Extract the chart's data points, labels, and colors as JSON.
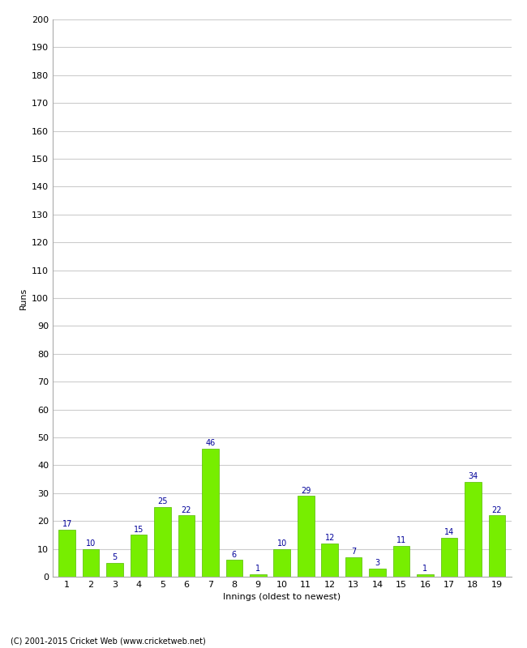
{
  "xlabel": "Innings (oldest to newest)",
  "ylabel": "Runs",
  "categories": [
    "1",
    "2",
    "3",
    "4",
    "5",
    "6",
    "7",
    "8",
    "9",
    "10",
    "11",
    "12",
    "13",
    "14",
    "15",
    "16",
    "17",
    "18",
    "19"
  ],
  "values": [
    17,
    10,
    5,
    15,
    25,
    22,
    46,
    6,
    1,
    10,
    29,
    12,
    7,
    3,
    11,
    1,
    14,
    34,
    22
  ],
  "bar_color": "#77ee00",
  "bar_edge_color": "#55bb00",
  "value_label_color": "#000099",
  "ylim": [
    0,
    200
  ],
  "ytick_step": 10,
  "background_color": "#ffffff",
  "grid_color": "#cccccc",
  "footer_text": "(C) 2001-2015 Cricket Web (www.cricketweb.net)",
  "value_fontsize": 7,
  "axis_label_fontsize": 8,
  "tick_label_fontsize": 8,
  "footer_fontsize": 7
}
